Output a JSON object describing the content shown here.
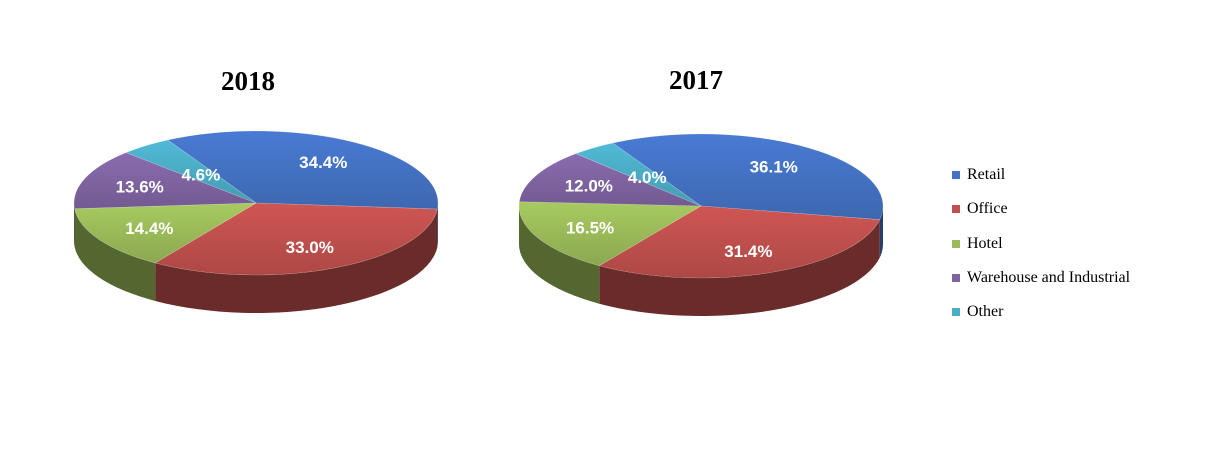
{
  "chart_data": {
    "type": "pie",
    "charts": [
      {
        "title": "2018",
        "slices": [
          {
            "category": "Retail",
            "value": 34.4,
            "label": "34.4%"
          },
          {
            "category": "Office",
            "value": 33.0,
            "label": "33.0%"
          },
          {
            "category": "Hotel",
            "value": 14.4,
            "label": "14.4%"
          },
          {
            "category": "Warehouse and Industrial",
            "value": 13.6,
            "label": "13.6%"
          },
          {
            "category": "Other",
            "value": 4.6,
            "label": "4.6%"
          }
        ]
      },
      {
        "title": "2017",
        "slices": [
          {
            "category": "Retail",
            "value": 36.1,
            "label": "36.1%"
          },
          {
            "category": "Office",
            "value": 31.4,
            "label": "31.4%"
          },
          {
            "category": "Hotel",
            "value": 16.5,
            "label": "16.5%"
          },
          {
            "category": "Warehouse and Industrial",
            "value": 12.0,
            "label": "12.0%"
          },
          {
            "category": "Other",
            "value": 4.0,
            "label": "4.0%"
          }
        ]
      }
    ],
    "legend": {
      "placement": "right",
      "items": [
        {
          "label": "Retail",
          "color": "#4472c4"
        },
        {
          "label": "Office",
          "color": "#c0504d"
        },
        {
          "label": "Hotel",
          "color": "#9bbb59"
        },
        {
          "label": "Warehouse and Industrial",
          "color": "#8064a2"
        },
        {
          "label": "Other",
          "color": "#4bacc6"
        }
      ]
    },
    "style": "3d"
  }
}
